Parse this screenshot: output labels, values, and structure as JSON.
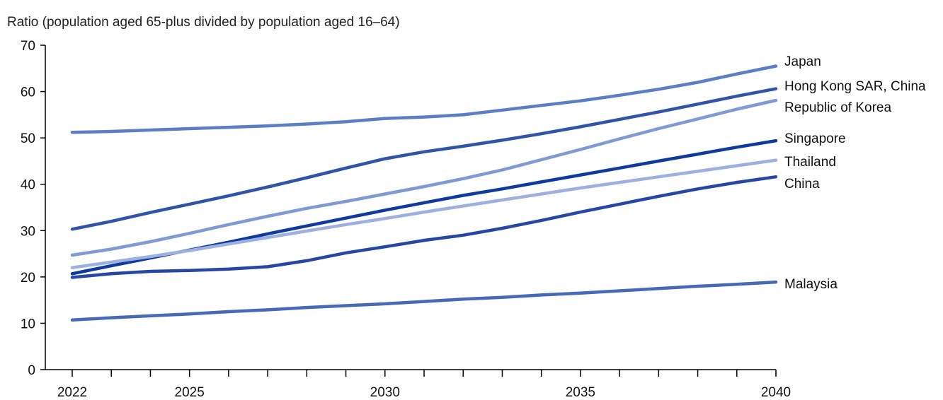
{
  "chart_data": {
    "type": "line",
    "title": "",
    "ylabel": "Ratio (population aged 65-plus divided by population aged 16–64)",
    "xlabel": "",
    "xlim": [
      2022,
      2040
    ],
    "ylim": [
      0,
      70
    ],
    "x_ticks": [
      2022,
      2025,
      2030,
      2035,
      2040
    ],
    "y_ticks": [
      0,
      10,
      20,
      30,
      40,
      50,
      60,
      70
    ],
    "grid": false,
    "legend": "end-of-line labels",
    "x": [
      2022,
      2023,
      2024,
      2025,
      2026,
      2027,
      2028,
      2029,
      2030,
      2031,
      2032,
      2033,
      2034,
      2035,
      2036,
      2037,
      2038,
      2039,
      2040
    ],
    "series": [
      {
        "name": "Japan",
        "color": "#5b7ec6",
        "values": [
          51.2,
          51.4,
          51.7,
          52.0,
          52.3,
          52.6,
          53.0,
          53.5,
          54.2,
          54.5,
          55.0,
          56.0,
          57.0,
          58.0,
          59.2,
          60.5,
          62.0,
          63.8,
          65.5
        ]
      },
      {
        "name": "Hong Kong SAR, China",
        "color": "#2f54a8",
        "values": [
          30.3,
          32.0,
          33.9,
          35.7,
          37.5,
          39.4,
          41.4,
          43.5,
          45.5,
          47.0,
          48.2,
          49.5,
          50.9,
          52.4,
          54.0,
          55.6,
          57.3,
          59.0,
          60.6
        ]
      },
      {
        "name": "Republic of Korea",
        "color": "#7f9bd3",
        "values": [
          24.7,
          26.0,
          27.6,
          29.4,
          31.3,
          33.1,
          34.8,
          36.3,
          37.9,
          39.5,
          41.2,
          43.1,
          45.3,
          47.5,
          49.8,
          52.0,
          54.1,
          56.2,
          58.1
        ]
      },
      {
        "name": "Singapore",
        "color": "#0f3b9f",
        "values": [
          20.7,
          22.4,
          24.1,
          25.8,
          27.5,
          29.3,
          31.0,
          32.7,
          34.4,
          36.0,
          37.6,
          39.0,
          40.5,
          42.0,
          43.5,
          45.0,
          46.5,
          48.0,
          49.4
        ]
      },
      {
        "name": "Thailand",
        "color": "#9db0e0",
        "values": [
          22.0,
          23.2,
          24.4,
          25.7,
          27.1,
          28.5,
          29.9,
          31.3,
          32.6,
          34.0,
          35.3,
          36.6,
          37.9,
          39.2,
          40.4,
          41.6,
          42.8,
          44.0,
          45.2
        ]
      },
      {
        "name": "China",
        "color": "#2648a4",
        "values": [
          19.9,
          20.7,
          21.2,
          21.4,
          21.7,
          22.2,
          23.5,
          25.2,
          26.5,
          27.9,
          29.0,
          30.5,
          32.2,
          34.0,
          35.7,
          37.4,
          39.0,
          40.4,
          41.6
        ]
      },
      {
        "name": "Malaysia",
        "color": "#4669b8",
        "values": [
          10.7,
          11.2,
          11.6,
          12.0,
          12.5,
          12.9,
          13.4,
          13.8,
          14.2,
          14.7,
          15.2,
          15.6,
          16.1,
          16.5,
          17.0,
          17.5,
          18.0,
          18.4,
          18.9
        ]
      }
    ]
  }
}
